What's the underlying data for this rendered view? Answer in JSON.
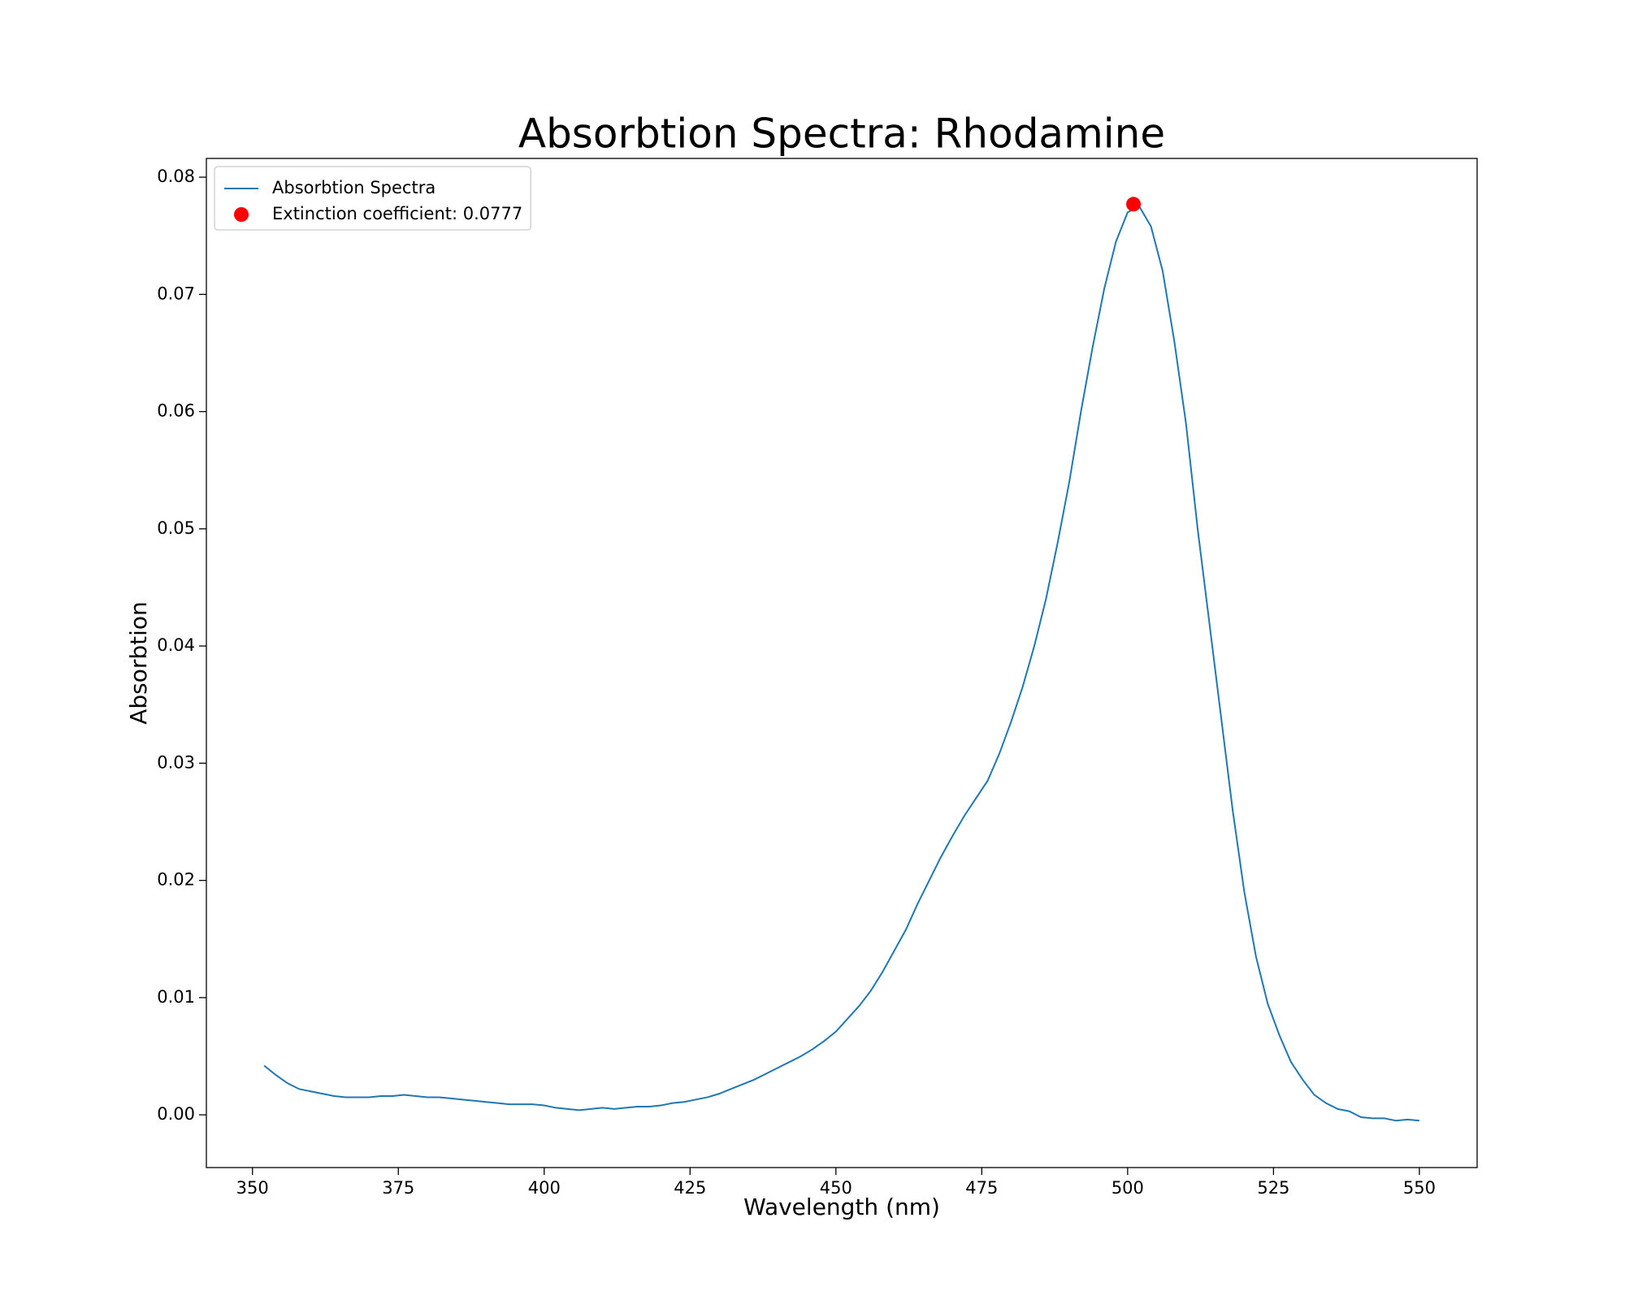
{
  "chart_data": {
    "type": "line",
    "title": "Absorbtion Spectra: Rhodamine",
    "x_label": "Wavelength (nm)",
    "y_label": "Absorbtion",
    "x": [
      352,
      354,
      356,
      358,
      360,
      362,
      364,
      366,
      368,
      370,
      372,
      374,
      376,
      378,
      380,
      382,
      384,
      386,
      388,
      390,
      392,
      394,
      396,
      398,
      400,
      402,
      404,
      406,
      408,
      410,
      412,
      414,
      416,
      418,
      420,
      422,
      424,
      426,
      428,
      430,
      432,
      434,
      436,
      438,
      440,
      442,
      444,
      446,
      448,
      450,
      452,
      454,
      456,
      458,
      460,
      462,
      464,
      466,
      468,
      470,
      472,
      474,
      476,
      478,
      480,
      482,
      484,
      486,
      488,
      490,
      492,
      494,
      496,
      498,
      500,
      502,
      504,
      506,
      508,
      510,
      512,
      514,
      516,
      518,
      520,
      522,
      524,
      526,
      528,
      530,
      532,
      534,
      536,
      538,
      540,
      542,
      544,
      546,
      548,
      550
    ],
    "series": [
      {
        "name": "Absorbtion Spectra",
        "color": "#1f77b4",
        "values": [
          0.0042,
          0.0034,
          0.0027,
          0.0022,
          0.002,
          0.0018,
          0.0016,
          0.0015,
          0.0015,
          0.0015,
          0.0016,
          0.0016,
          0.0017,
          0.0016,
          0.0015,
          0.0015,
          0.0014,
          0.0013,
          0.0012,
          0.0011,
          0.001,
          0.0009,
          0.0009,
          0.0009,
          0.0008,
          0.0006,
          0.0005,
          0.0004,
          0.0005,
          0.0006,
          0.0005,
          0.0006,
          0.0007,
          0.0007,
          0.0008,
          0.001,
          0.0011,
          0.0013,
          0.0015,
          0.0018,
          0.0022,
          0.0026,
          0.003,
          0.0035,
          0.004,
          0.0045,
          0.005,
          0.0056,
          0.0063,
          0.0071,
          0.0082,
          0.0093,
          0.0106,
          0.0122,
          0.014,
          0.0158,
          0.018,
          0.02,
          0.022,
          0.0238,
          0.0255,
          0.027,
          0.0285,
          0.0308,
          0.0335,
          0.0365,
          0.04,
          0.044,
          0.0488,
          0.054,
          0.06,
          0.0655,
          0.0705,
          0.0745,
          0.077,
          0.0775,
          0.0758,
          0.072,
          0.066,
          0.059,
          0.05,
          0.042,
          0.034,
          0.026,
          0.019,
          0.0135,
          0.0095,
          0.0068,
          0.0045,
          0.003,
          0.0017,
          0.001,
          0.0005,
          0.0003,
          -0.0002,
          -0.0003,
          -0.0003,
          -0.0005,
          -0.0004,
          -0.0005
        ]
      }
    ],
    "markers": [
      {
        "name": "Extinction coefficient: 0.0777",
        "color": "#ff0000",
        "x": 501,
        "y": 0.0777
      }
    ],
    "xlim": [
      342.1,
      559.9
    ],
    "ylim": [
      -0.0045,
      0.0816
    ],
    "xticks": [
      350,
      375,
      400,
      425,
      450,
      475,
      500,
      525,
      550
    ],
    "yticks": [
      {
        "value": 0,
        "label": "0.00"
      },
      {
        "value": 0.01,
        "label": "0.01"
      },
      {
        "value": 0.02,
        "label": "0.02"
      },
      {
        "value": 0.03,
        "label": "0.03"
      },
      {
        "value": 0.04,
        "label": "0.04"
      },
      {
        "value": 0.05,
        "label": "0.05"
      },
      {
        "value": 0.06,
        "label": "0.06"
      },
      {
        "value": 0.07,
        "label": "0.07"
      },
      {
        "value": 0.08,
        "label": "0.08"
      }
    ],
    "legend": "upper left"
  }
}
